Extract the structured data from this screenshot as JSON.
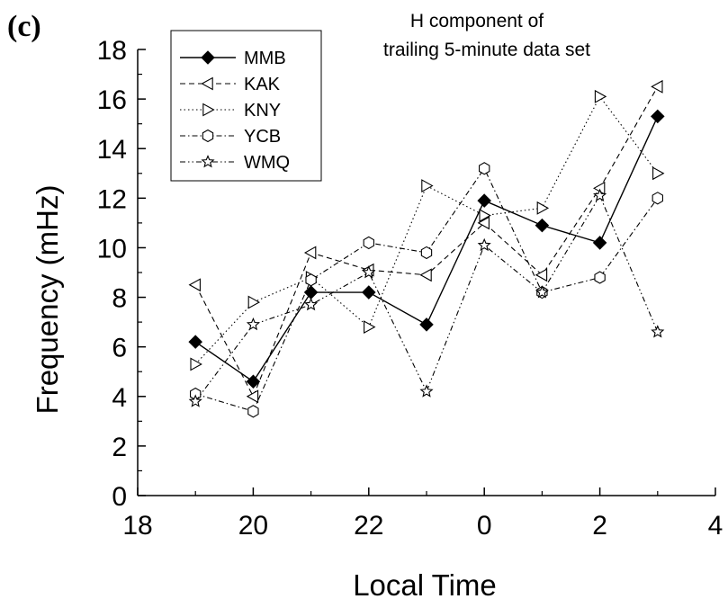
{
  "panel_label": "(c)",
  "chart_data": {
    "type": "line",
    "title": [
      "H component of",
      "trailing 5-minute data set"
    ],
    "xlabel": "Local Time",
    "ylabel": "Frequency (mHz)",
    "x_tick_labels": [
      "18",
      "20",
      "22",
      "0",
      "2",
      "4"
    ],
    "y_tick_labels": [
      "0",
      "2",
      "4",
      "6",
      "8",
      "10",
      "12",
      "14",
      "16",
      "18"
    ],
    "x_unit_note": "x axis is continuous local hours 18 to 28 (labels wrap past 24 to 0, 2, 4)",
    "xlim": [
      18,
      28
    ],
    "ylim": [
      0,
      18
    ],
    "x": [
      19,
      20,
      21,
      22,
      23,
      24,
      25,
      26,
      27
    ],
    "grid": false,
    "legend_position": "top-left",
    "series": [
      {
        "name": "MMB",
        "marker": "filled-diamond",
        "dash": "solid",
        "values": [
          6.2,
          4.6,
          8.2,
          8.2,
          6.9,
          11.9,
          10.9,
          10.2,
          15.3
        ]
      },
      {
        "name": "KAK",
        "marker": "left-triangle",
        "dash": "dashed",
        "values": [
          8.5,
          4.0,
          9.8,
          9.1,
          8.9,
          11.0,
          8.9,
          12.4,
          16.5
        ]
      },
      {
        "name": "KNY",
        "marker": "right-triangle",
        "dash": "dotted",
        "values": [
          5.3,
          7.8,
          8.8,
          6.8,
          12.5,
          11.3,
          11.6,
          16.1,
          13.0
        ]
      },
      {
        "name": "YCB",
        "marker": "hexagon",
        "dash": "dash-dot",
        "values": [
          4.1,
          3.4,
          8.7,
          10.2,
          9.8,
          13.2,
          8.2,
          8.8,
          12.0
        ]
      },
      {
        "name": "WMQ",
        "marker": "star",
        "dash": "dash-dot-dot",
        "values": [
          3.8,
          6.9,
          7.7,
          9.0,
          4.2,
          10.1,
          8.2,
          12.1,
          6.6
        ]
      }
    ]
  }
}
